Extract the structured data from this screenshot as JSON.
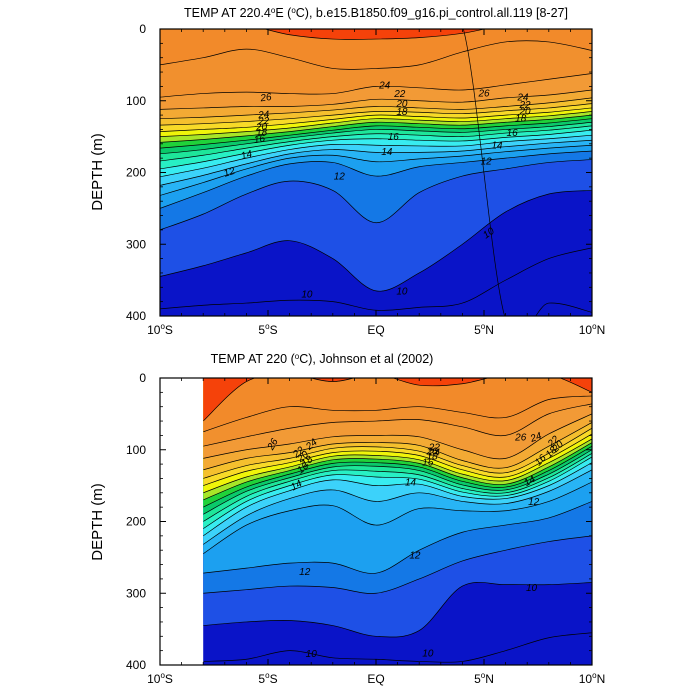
{
  "chart_data": [
    {
      "type": "contour",
      "title_main": "TEMP AT 220.4",
      "title_deg": "o",
      "title_rest": "E (",
      "title_deg2": "o",
      "title_tail": "C), b.e15.B1850.f09_g16.pi_control.all.119 [8-27]",
      "ylabel": "DEPTH (m)",
      "xlim": [
        -10,
        10
      ],
      "ylim": [
        0,
        400
      ],
      "y_ticks": [
        "0",
        "100",
        "200",
        "300",
        "400"
      ],
      "x_ticks": [
        {
          "num": "10",
          "deg": "o",
          "hem": "S"
        },
        {
          "num": "5",
          "deg": "o",
          "hem": "S"
        },
        {
          "num": "EQ",
          "deg": "",
          "hem": ""
        },
        {
          "num": "5",
          "deg": "o",
          "hem": "N"
        },
        {
          "num": "10",
          "deg": "o",
          "hem": "N"
        }
      ],
      "contour_interval_C": 1,
      "contour_labels": [
        "26",
        "24",
        "22",
        "20",
        "18",
        "16",
        "14",
        "12",
        "10",
        "24",
        "22",
        "20",
        "18",
        "16",
        "14",
        "12",
        "26",
        "24",
        "22",
        "20",
        "18",
        "16",
        "14",
        "12",
        "10",
        "10"
      ],
      "data_xmin": -10,
      "isotherm_depths_m": {
        "x": [
          -10,
          -8,
          -6,
          -4,
          -2,
          0,
          2,
          4,
          6,
          8,
          10
        ],
        "28": [
          -1,
          -1,
          -1,
          8,
          14,
          14,
          12,
          6,
          -1,
          -1,
          -1
        ],
        "27": [
          50,
          40,
          28,
          40,
          55,
          55,
          50,
          32,
          18,
          18,
          30
        ],
        "26": [
          95,
          90,
          88,
          90,
          90,
          80,
          82,
          85,
          78,
          70,
          62
        ],
        "25": [
          112,
          110,
          108,
          108,
          105,
          98,
          100,
          102,
          96,
          92,
          85
        ],
        "24": [
          125,
          123,
          120,
          117,
          113,
          108,
          110,
          112,
          108,
          103,
          96
        ],
        "23": [
          134,
          132,
          129,
          125,
          120,
          115,
          116,
          118,
          114,
          110,
          104
        ],
        "22": [
          143,
          140,
          137,
          132,
          126,
          120,
          122,
          124,
          120,
          116,
          110
        ],
        "21": [
          150,
          147,
          143,
          138,
          131,
          125,
          127,
          129,
          125,
          121,
          115
        ],
        "20": [
          158,
          154,
          149,
          143,
          136,
          130,
          132,
          134,
          130,
          126,
          120
        ],
        "19": [
          166,
          161,
          155,
          148,
          141,
          135,
          137,
          139,
          135,
          131,
          125
        ],
        "18": [
          174,
          168,
          160,
          152,
          145,
          140,
          142,
          144,
          140,
          136,
          130
        ],
        "17": [
          184,
          176,
          166,
          157,
          150,
          146,
          148,
          150,
          145,
          141,
          135
        ],
        "16": [
          195,
          185,
          173,
          162,
          155,
          153,
          155,
          156,
          151,
          147,
          141
        ],
        "15": [
          206,
          194,
          180,
          168,
          161,
          162,
          163,
          163,
          157,
          153,
          148
        ],
        "14": [
          218,
          204,
          188,
          174,
          168,
          172,
          172,
          170,
          164,
          159,
          155
        ],
        "13": [
          232,
          214,
          195,
          180,
          176,
          185,
          181,
          177,
          171,
          166,
          162
        ],
        "12": [
          250,
          228,
          205,
          188,
          186,
          205,
          192,
          186,
          180,
          174,
          170
        ],
        "11": [
          280,
          258,
          230,
          212,
          225,
          270,
          228,
          205,
          195,
          186,
          182
        ],
        "10": [
          345,
          330,
          312,
          295,
          320,
          365,
          340,
          300,
          255,
          230,
          225
        ],
        "9": [
          390,
          385,
          382,
          378,
          380,
          392,
          388,
          382,
          350,
          320,
          305
        ],
        "8": [
          -1,
          -1,
          -1,
          -1,
          -1,
          -1,
          -1,
          -1,
          405,
          382,
          395
        ]
      }
    },
    {
      "type": "contour",
      "title_main": "TEMP AT 220 (",
      "title_deg": "o",
      "title_rest": "C), Johnson et al (2002)",
      "title_deg2": "",
      "title_tail": "",
      "ylabel": "DEPTH (m)",
      "xlim": [
        -10,
        10
      ],
      "ylim": [
        0,
        400
      ],
      "y_ticks": [
        "0",
        "100",
        "200",
        "300",
        "400"
      ],
      "x_ticks": [
        {
          "num": "10",
          "deg": "o",
          "hem": "S"
        },
        {
          "num": "5",
          "deg": "o",
          "hem": "S"
        },
        {
          "num": "EQ",
          "deg": "",
          "hem": ""
        },
        {
          "num": "5",
          "deg": "o",
          "hem": "N"
        },
        {
          "num": "10",
          "deg": "o",
          "hem": "N"
        }
      ],
      "contour_interval_C": 1,
      "contour_labels": [
        "26",
        "24",
        "22",
        "20",
        "18",
        "16",
        "14",
        "12",
        "10",
        "24",
        "22",
        "20",
        "18",
        "16",
        "14",
        "12",
        "26",
        "24",
        "22",
        "20",
        "18",
        "16",
        "14",
        "12",
        "10",
        "10"
      ],
      "data_xmin": -8,
      "isotherm_depths_m": {
        "x": [
          -8,
          -6,
          -4,
          -2,
          0,
          2,
          4,
          6,
          8,
          10
        ],
        "28": [
          60,
          5,
          -1,
          5,
          -1,
          10,
          8,
          -1,
          -1,
          20
        ],
        "27": [
          75,
          55,
          40,
          45,
          45,
          40,
          48,
          55,
          30,
          25
        ],
        "26": [
          95,
          82,
          70,
          62,
          60,
          58,
          68,
          80,
          50,
          36
        ],
        "25": [
          112,
          100,
          92,
          82,
          80,
          82,
          100,
          112,
          78,
          50
        ],
        "24": [
          128,
          112,
          104,
          92,
          90,
          94,
          115,
          125,
          95,
          62
        ],
        "23": [
          140,
          122,
          112,
          98,
          96,
          102,
          122,
          132,
          105,
          70
        ],
        "22": [
          150,
          130,
          118,
          104,
          102,
          108,
          128,
          138,
          112,
          78
        ],
        "21": [
          160,
          138,
          124,
          109,
          108,
          114,
          134,
          143,
          118,
          85
        ],
        "20": [
          170,
          145,
          129,
          114,
          113,
          119,
          139,
          148,
          124,
          90
        ],
        "19": [
          180,
          152,
          134,
          119,
          118,
          124,
          144,
          152,
          129,
          95
        ],
        "18": [
          190,
          158,
          139,
          124,
          123,
          129,
          149,
          156,
          134,
          100
        ],
        "17": [
          200,
          165,
          144,
          129,
          130,
          135,
          154,
          160,
          139,
          105
        ],
        "16": [
          210,
          172,
          150,
          135,
          138,
          141,
          159,
          164,
          144,
          110
        ],
        "15": [
          220,
          180,
          157,
          142,
          150,
          148,
          165,
          168,
          150,
          118
        ],
        "14": [
          232,
          192,
          168,
          156,
          172,
          160,
          172,
          175,
          158,
          128
        ],
        "13": [
          245,
          205,
          185,
          178,
          205,
          182,
          185,
          185,
          172,
          145
        ],
        "12": [
          272,
          265,
          258,
          258,
          272,
          240,
          215,
          205,
          195,
          172
        ],
        "11": [
          300,
          295,
          290,
          292,
          300,
          280,
          255,
          240,
          228,
          220
        ],
        "10": [
          345,
          340,
          338,
          345,
          360,
          352,
          290,
          288,
          288,
          285
        ],
        "9": [
          395,
          392,
          380,
          390,
          392,
          395,
          395,
          380,
          362,
          355
        ],
        "8": [
          -1,
          -1,
          -1,
          -1,
          -1,
          -1,
          -1,
          -1,
          -1,
          -1
        ]
      }
    }
  ],
  "palette": {
    "8": "#0a14c8",
    "9": "#1e50e6",
    "10": "#1478e6",
    "11": "#1ca0f0",
    "12": "#28b4f5",
    "13": "#3cd2fa",
    "14": "#38ecf0",
    "15": "#28f0c4",
    "16": "#1ee69a",
    "17": "#0aca6a",
    "18": "#20d23a",
    "19": "#a8e628",
    "20": "#f0f50a",
    "21": "#f8da28",
    "22": "#f5c02e",
    "23": "#f3aa34",
    "24": "#f29a36",
    "25": "#f1902e",
    "26": "#f28a2a",
    "27": "#f6921e",
    "28": "#f5420a"
  }
}
